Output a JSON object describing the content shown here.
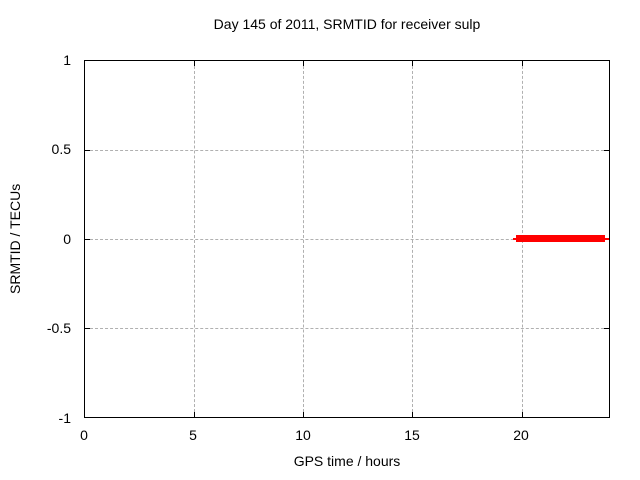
{
  "chart_data": {
    "type": "line",
    "title": "Day 145 of 2011, SRMTID for receiver sulp",
    "xlabel": "GPS time / hours",
    "ylabel": "SRMTID / TECUs",
    "xlim": [
      0,
      24
    ],
    "ylim": [
      -1,
      1
    ],
    "xticks": [
      0,
      5,
      10,
      15,
      20
    ],
    "yticks": [
      1,
      0.5,
      0,
      -0.5,
      -1
    ],
    "xtick_labels": [
      "0",
      "5",
      "10",
      "15",
      "20"
    ],
    "ytick_labels": [
      "1",
      "0.5",
      "0",
      "-0.5",
      "-1"
    ],
    "grid": true,
    "grid_style": "dashed",
    "legend_position": "none",
    "series": [
      {
        "name": "SRMTID",
        "color": "#ff0000",
        "style": "thick horizontal segment",
        "x_start": 19.6,
        "x_end": 24.0,
        "y": 0,
        "points": [
          [
            19.6,
            0
          ],
          [
            24.0,
            0
          ]
        ]
      }
    ]
  },
  "colors": {
    "background": "#ffffff",
    "axis": "#000000",
    "grid": "#b0b0b0",
    "series": "#ff0000",
    "text": "#000000"
  }
}
